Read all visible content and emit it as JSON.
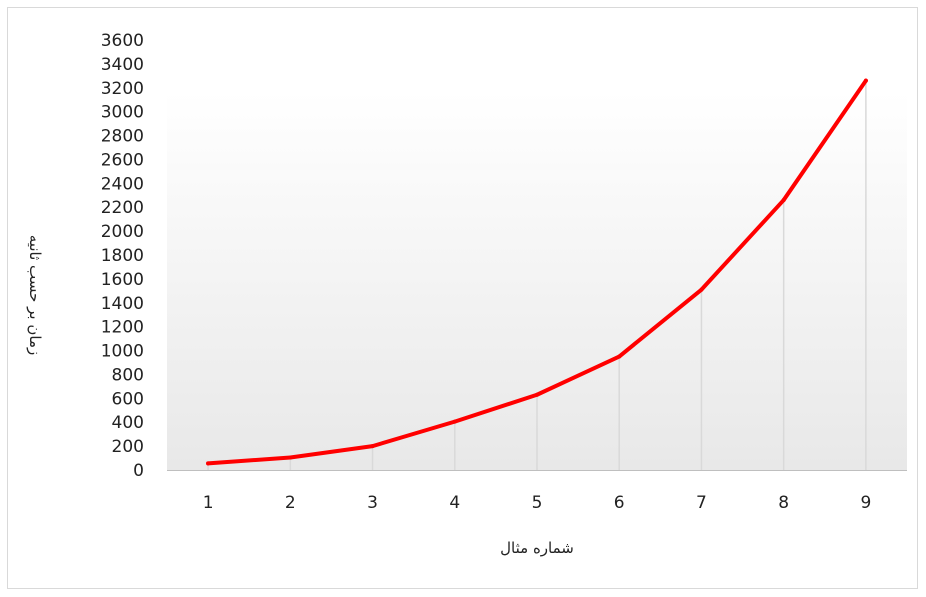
{
  "chart_data": {
    "type": "line",
    "title": "",
    "xlabel": "شماره مثال",
    "ylabel": "زمان بر حسب ثانیه",
    "categories": [
      "1",
      "2",
      "3",
      "4",
      "5",
      "6",
      "7",
      "8",
      "9"
    ],
    "series": [
      {
        "values": [
          55,
          105,
          200,
          405,
          630,
          950,
          1510,
          2260,
          3260
        ]
      }
    ],
    "ylim": [
      0,
      3600
    ],
    "yticks": [
      0,
      200,
      400,
      600,
      800,
      1000,
      1200,
      1400,
      1600,
      1800,
      2000,
      2200,
      2400,
      2600,
      2800,
      3000,
      3200,
      3400,
      3600
    ],
    "grid": "vertical drop lines to data points",
    "legend": "none",
    "colors": {
      "line": "#ff0000",
      "dropline": "#d9d9d9",
      "plot_bg_top": "#ffffff",
      "plot_bg_bottom": "#e8e8e8"
    }
  }
}
